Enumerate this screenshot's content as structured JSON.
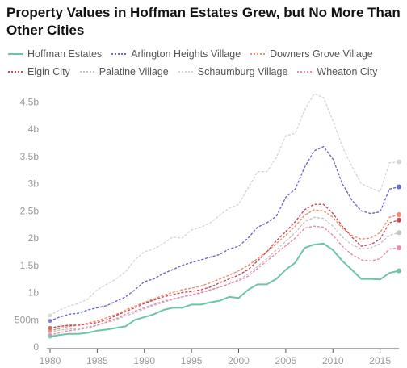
{
  "chart_data": {
    "type": "line",
    "title": "Property Values in Hoffman Estates Grew, but No More Than Other Cities",
    "xlabel": "",
    "ylabel": "",
    "xlim": [
      1980,
      2017
    ],
    "ylim": [
      0,
      4800000000
    ],
    "x_ticks": [
      1980,
      1985,
      1990,
      1995,
      2000,
      2005,
      2010,
      2015
    ],
    "x_tick_labels": [
      "1980",
      "1985",
      "1990",
      "1995",
      "2000",
      "2005",
      "2010",
      "2015"
    ],
    "y_ticks": [
      0,
      500000000,
      1000000000,
      1500000000,
      2000000000,
      2500000000,
      3000000000,
      3500000000,
      4000000000,
      4500000000
    ],
    "y_tick_labels": [
      "0",
      "500m",
      "1b",
      "1.5b",
      "2b",
      "2.5b",
      "3b",
      "3.5b",
      "4b",
      "4.5b"
    ],
    "grid": false,
    "legend_position": "top",
    "x": [
      1980,
      1981,
      1982,
      1983,
      1984,
      1985,
      1986,
      1987,
      1988,
      1989,
      1990,
      1991,
      1992,
      1993,
      1994,
      1995,
      1996,
      1997,
      1998,
      1999,
      2000,
      2001,
      2002,
      2003,
      2004,
      2005,
      2006,
      2007,
      2008,
      2009,
      2010,
      2011,
      2012,
      2013,
      2014,
      2015,
      2016,
      2017
    ],
    "series": [
      {
        "name": "Hoffman Estates",
        "color": "#6cc5a8",
        "dashed": false,
        "values": [
          0.19,
          0.22,
          0.24,
          0.24,
          0.26,
          0.3,
          0.32,
          0.35,
          0.38,
          0.5,
          0.55,
          0.6,
          0.68,
          0.72,
          0.72,
          0.78,
          0.78,
          0.82,
          0.85,
          0.92,
          0.9,
          1.05,
          1.15,
          1.15,
          1.25,
          1.42,
          1.55,
          1.82,
          1.88,
          1.9,
          1.78,
          1.58,
          1.42,
          1.25,
          1.25,
          1.24,
          1.36,
          1.4
        ]
      },
      {
        "name": "Arlington Heights Village",
        "color": "#6a6ac8",
        "dashed": true,
        "values": [
          0.48,
          0.55,
          0.6,
          0.62,
          0.68,
          0.72,
          0.76,
          0.84,
          0.92,
          1.05,
          1.2,
          1.25,
          1.35,
          1.42,
          1.5,
          1.55,
          1.6,
          1.65,
          1.7,
          1.8,
          1.85,
          2.0,
          2.2,
          2.28,
          2.4,
          2.75,
          2.9,
          3.3,
          3.6,
          3.68,
          3.45,
          3.0,
          2.7,
          2.5,
          2.45,
          2.48,
          2.9,
          2.94
        ]
      },
      {
        "name": "Downers Grove Village",
        "color": "#f08c6a",
        "dashed": true,
        "values": [
          0.3,
          0.34,
          0.38,
          0.4,
          0.44,
          0.48,
          0.54,
          0.6,
          0.68,
          0.75,
          0.82,
          0.88,
          0.95,
          1.0,
          1.05,
          1.08,
          1.12,
          1.18,
          1.25,
          1.32,
          1.4,
          1.5,
          1.62,
          1.75,
          1.9,
          2.05,
          2.22,
          2.42,
          2.52,
          2.5,
          2.38,
          2.18,
          2.05,
          1.98,
          2.0,
          2.1,
          2.38,
          2.43
        ]
      },
      {
        "name": "Elgin City",
        "color": "#c84a5a",
        "dashed": true,
        "values": [
          0.35,
          0.38,
          0.4,
          0.4,
          0.42,
          0.45,
          0.5,
          0.58,
          0.65,
          0.72,
          0.8,
          0.86,
          0.92,
          0.96,
          1.0,
          1.02,
          1.05,
          1.1,
          1.18,
          1.25,
          1.32,
          1.42,
          1.58,
          1.75,
          1.95,
          2.12,
          2.3,
          2.52,
          2.62,
          2.62,
          2.45,
          2.22,
          2.02,
          1.85,
          1.88,
          1.98,
          2.28,
          2.33
        ]
      },
      {
        "name": "Palatine Village",
        "color": "#c5c5c5",
        "dashed": true,
        "values": [
          0.28,
          0.31,
          0.33,
          0.34,
          0.37,
          0.4,
          0.45,
          0.5,
          0.57,
          0.63,
          0.7,
          0.76,
          0.82,
          0.87,
          0.92,
          0.95,
          0.99,
          1.04,
          1.1,
          1.16,
          1.24,
          1.34,
          1.48,
          1.62,
          1.78,
          1.94,
          2.1,
          2.3,
          2.38,
          2.36,
          2.22,
          2.02,
          1.88,
          1.8,
          1.82,
          1.9,
          2.05,
          2.1
        ]
      },
      {
        "name": "Schaumburg Village",
        "color": "#d6d6d6",
        "dashed": true,
        "values": [
          0.58,
          0.68,
          0.75,
          0.8,
          0.88,
          1.05,
          1.15,
          1.25,
          1.38,
          1.6,
          1.75,
          1.8,
          1.9,
          2.02,
          2.0,
          2.15,
          2.2,
          2.28,
          2.42,
          2.55,
          2.62,
          2.92,
          3.22,
          3.22,
          3.48,
          3.88,
          3.92,
          4.35,
          4.65,
          4.58,
          4.15,
          3.68,
          3.32,
          3.0,
          2.92,
          2.85,
          3.38,
          3.4
        ]
      },
      {
        "name": "Wheaton City",
        "color": "#e88aaa",
        "dashed": true,
        "values": [
          0.22,
          0.26,
          0.3,
          0.32,
          0.35,
          0.4,
          0.46,
          0.52,
          0.6,
          0.66,
          0.72,
          0.78,
          0.84,
          0.88,
          0.92,
          0.96,
          1.0,
          1.05,
          1.1,
          1.16,
          1.22,
          1.3,
          1.44,
          1.58,
          1.72,
          1.86,
          2.0,
          2.18,
          2.22,
          2.2,
          2.05,
          1.85,
          1.7,
          1.6,
          1.58,
          1.62,
          1.8,
          1.82
        ]
      }
    ],
    "values_unit_note": "billions"
  },
  "legend": [
    {
      "label": "Hoffman Estates",
      "color": "#6cc5a8",
      "dashed": false
    },
    {
      "label": "Arlington Heights Village",
      "color": "#6a6ac8",
      "dashed": true
    },
    {
      "label": "Downers Grove Village",
      "color": "#f08c6a",
      "dashed": true
    },
    {
      "label": "Elgin City",
      "color": "#c84a5a",
      "dashed": true
    },
    {
      "label": "Palatine Village",
      "color": "#c5c5c5",
      "dashed": true
    },
    {
      "label": "Schaumburg Village",
      "color": "#d6d6d6",
      "dashed": true
    },
    {
      "label": "Wheaton City",
      "color": "#e88aaa",
      "dashed": true
    }
  ]
}
